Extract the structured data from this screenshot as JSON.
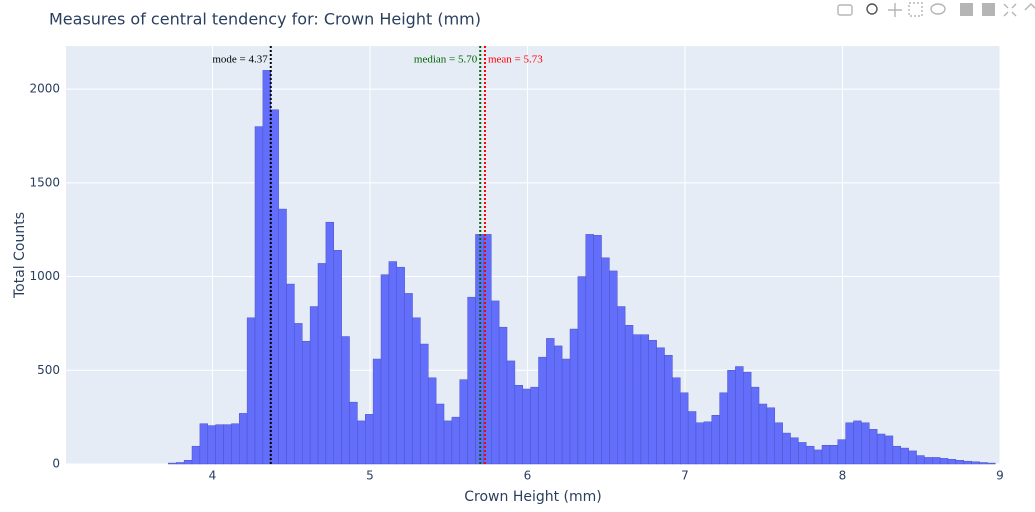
{
  "chart_data": {
    "type": "histogram",
    "title": "Measures of central tendency for: Crown Height (mm)",
    "x_label": "Crown Height (mm)",
    "y_label": "Total Counts",
    "color": "#636efa",
    "bins": [
      3.72,
      3.77,
      3.82,
      3.87,
      3.92,
      3.97,
      4.02,
      4.07,
      4.12,
      4.17,
      4.22,
      4.27,
      4.32,
      4.37,
      4.42,
      4.47,
      4.52,
      4.57,
      4.62,
      4.67,
      4.72,
      4.77,
      4.82,
      4.87,
      4.92,
      4.97,
      5.02,
      5.07,
      5.12,
      5.17,
      5.22,
      5.27,
      5.32,
      5.37,
      5.42,
      5.47,
      5.52,
      5.57,
      5.62,
      5.67,
      5.72,
      5.77,
      5.82,
      5.87,
      5.92,
      5.97,
      6.02,
      6.07,
      6.12,
      6.17,
      6.22,
      6.27,
      6.32,
      6.37,
      6.42,
      6.47,
      6.52,
      6.57,
      6.62,
      6.67,
      6.72,
      6.77,
      6.82,
      6.87,
      6.92,
      6.97,
      7.02,
      7.07,
      7.12,
      7.17,
      7.22,
      7.27,
      7.32,
      7.37,
      7.42,
      7.47,
      7.52,
      7.57,
      7.62,
      7.67,
      7.72,
      7.77,
      7.82,
      7.87,
      7.92,
      7.97,
      8.02,
      8.07,
      8.12,
      8.17,
      8.22,
      8.27,
      8.32,
      8.37,
      8.42,
      8.47,
      8.52,
      8.57,
      8.62,
      8.67,
      8.72,
      8.77,
      8.82,
      8.87,
      8.92,
      8.97
    ],
    "values": [
      5,
      8,
      20,
      95,
      215,
      205,
      210,
      210,
      215,
      270,
      780,
      1800,
      2100,
      1890,
      1360,
      960,
      750,
      655,
      840,
      1070,
      1290,
      1140,
      680,
      330,
      230,
      265,
      560,
      1010,
      1080,
      1050,
      910,
      780,
      640,
      460,
      320,
      230,
      250,
      450,
      890,
      1225,
      1225,
      870,
      730,
      550,
      420,
      400,
      410,
      570,
      670,
      630,
      560,
      720,
      1000,
      1225,
      1220,
      1100,
      1030,
      840,
      740,
      690,
      690,
      660,
      620,
      580,
      460,
      380,
      280,
      220,
      225,
      260,
      380,
      500,
      520,
      490,
      410,
      320,
      300,
      220,
      165,
      140,
      115,
      95,
      75,
      100,
      100,
      130,
      220,
      230,
      220,
      185,
      160,
      150,
      95,
      85,
      70,
      45,
      35,
      35,
      30,
      25,
      20,
      15,
      12,
      8,
      5
    ],
    "xlim": [
      3.07,
      9
    ],
    "xticks": [
      4,
      5,
      6,
      7,
      8,
      9
    ],
    "ylim": [
      0,
      2230
    ],
    "yticks": [
      0,
      500,
      1000,
      1500,
      2000
    ],
    "grid": true,
    "vlines": [
      {
        "value": 4.37,
        "label": "mode = 4.37",
        "color": "#000000"
      },
      {
        "value": 5.7,
        "label": "median = 5.70",
        "color": "#006400"
      },
      {
        "value": 5.73,
        "label": "mean = 5.73",
        "color": "#ff0000"
      }
    ]
  }
}
